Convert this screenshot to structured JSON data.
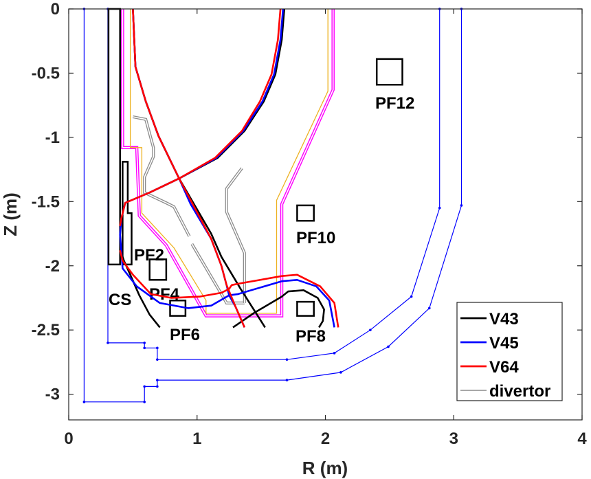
{
  "chart_data": {
    "type": "line",
    "title": "",
    "xlabel": "R (m)",
    "ylabel": "Z (m)",
    "xlim": [
      0,
      4
    ],
    "ylim": [
      -3.2,
      0
    ],
    "grid": false,
    "legend_placement": "bottom-right",
    "xticks": [
      0,
      1,
      2,
      3,
      4
    ],
    "xtick_labels": [
      "0",
      "1",
      "2",
      "3",
      "4"
    ],
    "yticks": [
      0,
      -0.5,
      -1,
      -1.5,
      -2,
      -2.5,
      -3
    ],
    "ytick_labels": [
      "0",
      "-0.5",
      "-1",
      "-1.5",
      "-2",
      "-2.5",
      "-3"
    ],
    "series": [
      {
        "name": "V43",
        "color": "#000000",
        "segments": [
          [
            [
              1.68,
              0
            ],
            [
              1.66,
              -0.24
            ],
            [
              1.61,
              -0.51
            ],
            [
              1.52,
              -0.72
            ],
            [
              1.37,
              -0.95
            ],
            [
              1.16,
              -1.16
            ],
            [
              0.86,
              -1.32
            ],
            [
              0.63,
              -1.43
            ]
          ],
          [
            [
              0.5,
              0
            ],
            [
              0.52,
              -0.45
            ],
            [
              0.6,
              -0.72
            ],
            [
              0.7,
              -0.99
            ],
            [
              0.86,
              -1.32
            ],
            [
              1.11,
              -1.75
            ],
            [
              1.19,
              -1.93
            ],
            [
              1.34,
              -2.18
            ],
            [
              1.53,
              -2.48
            ]
          ],
          [
            [
              0.41,
              -1.9
            ],
            [
              0.43,
              -1.96
            ],
            [
              0.48,
              -2.07
            ],
            [
              0.55,
              -2.23
            ],
            [
              0.63,
              -2.38
            ],
            [
              0.71,
              -2.48
            ]
          ],
          [
            [
              1.28,
              -2.48
            ],
            [
              1.44,
              -2.37
            ],
            [
              1.66,
              -2.24
            ],
            [
              1.71,
              -2.2
            ],
            [
              1.83,
              -2.19
            ],
            [
              1.94,
              -2.25
            ],
            [
              1.99,
              -2.34
            ],
            [
              1.98,
              -2.43
            ],
            [
              1.95,
              -2.48
            ]
          ]
        ]
      },
      {
        "name": "V45",
        "color": "#0000ff",
        "segments": [
          [
            [
              0.5,
              0
            ],
            [
              0.52,
              -0.45
            ],
            [
              0.6,
              -0.72
            ],
            [
              0.7,
              -0.99
            ],
            [
              0.86,
              -1.32
            ],
            [
              0.95,
              -1.52
            ],
            [
              1.11,
              -1.79
            ],
            [
              1.19,
              -2.0
            ],
            [
              1.23,
              -2.15
            ],
            [
              1.25,
              -2.23
            ],
            [
              1.3,
              -2.32
            ],
            [
              1.37,
              -2.48
            ]
          ],
          [
            [
              1.67,
              0
            ],
            [
              1.65,
              -0.24
            ],
            [
              1.6,
              -0.51
            ],
            [
              1.51,
              -0.72
            ],
            [
              1.36,
              -0.95
            ],
            [
              1.15,
              -1.16
            ],
            [
              0.86,
              -1.32
            ],
            [
              0.63,
              -1.43
            ],
            [
              0.44,
              -1.51
            ],
            [
              0.41,
              -1.63
            ],
            [
              0.4,
              -1.76
            ],
            [
              0.42,
              -2.02
            ],
            [
              0.53,
              -2.16
            ],
            [
              0.71,
              -2.29
            ],
            [
              0.93,
              -2.33
            ],
            [
              1.11,
              -2.31
            ],
            [
              1.25,
              -2.23
            ],
            [
              1.32,
              -2.22
            ],
            [
              1.66,
              -2.12
            ],
            [
              1.78,
              -2.11
            ],
            [
              1.93,
              -2.16
            ],
            [
              2.03,
              -2.27
            ],
            [
              2.07,
              -2.48
            ]
          ]
        ]
      },
      {
        "name": "V64",
        "color": "#ff0000",
        "segments": [
          [
            [
              0.5,
              0
            ],
            [
              0.52,
              -0.45
            ],
            [
              0.6,
              -0.72
            ],
            [
              0.7,
              -0.99
            ],
            [
              0.86,
              -1.32
            ],
            [
              1.11,
              -1.79
            ],
            [
              1.19,
              -2.0
            ],
            [
              1.23,
              -2.15
            ],
            [
              1.3,
              -2.32
            ],
            [
              1.37,
              -2.48
            ]
          ],
          [
            [
              1.65,
              0
            ],
            [
              1.63,
              -0.24
            ],
            [
              1.58,
              -0.51
            ],
            [
              1.49,
              -0.72
            ],
            [
              1.35,
              -0.95
            ],
            [
              1.14,
              -1.16
            ],
            [
              0.86,
              -1.32
            ],
            [
              0.63,
              -1.43
            ],
            [
              0.44,
              -1.51
            ],
            [
              0.41,
              -1.63
            ],
            [
              0.4,
              -1.69
            ]
          ],
          [
            [
              0.4,
              -1.88
            ],
            [
              0.42,
              -1.96
            ],
            [
              0.5,
              -2.07
            ],
            [
              0.64,
              -2.22
            ],
            [
              0.8,
              -2.25
            ],
            [
              1.02,
              -2.24
            ],
            [
              1.19,
              -2.21
            ],
            [
              1.25,
              -2.18
            ],
            [
              1.27,
              -2.15
            ],
            [
              1.32,
              -2.14
            ],
            [
              1.66,
              -2.08
            ],
            [
              1.78,
              -2.07
            ],
            [
              1.96,
              -2.16
            ],
            [
              2.07,
              -2.29
            ],
            [
              2.1,
              -2.48
            ]
          ]
        ]
      },
      {
        "name": "divertor",
        "color": "#8c8c8c",
        "segments": [
          [
            [
              0.5,
              -0.84
            ],
            [
              0.6,
              -0.86
            ],
            [
              0.66,
              -1.08
            ],
            [
              0.66,
              -1.15
            ],
            [
              0.59,
              -1.31
            ],
            [
              0.59,
              -1.43
            ],
            [
              0.76,
              -1.51
            ],
            [
              0.82,
              -1.54
            ],
            [
              0.94,
              -1.77
            ]
          ],
          [
            [
              0.96,
              -1.83
            ],
            [
              1.19,
              -2.22
            ],
            [
              1.23,
              -2.29
            ],
            [
              1.37,
              -2.29
            ]
          ],
          [
            [
              1.35,
              -1.24
            ],
            [
              1.23,
              -1.4
            ],
            [
              1.23,
              -1.58
            ],
            [
              1.37,
              -1.9
            ],
            [
              1.37,
              -2.29
            ]
          ]
        ]
      }
    ],
    "walls": [
      {
        "name": "first-wall",
        "color": "#ff00ff",
        "points": [
          [
            0.42,
            0
          ],
          [
            0.42,
            -1.08
          ],
          [
            0.53,
            -1.08
          ],
          [
            0.55,
            -1.61
          ],
          [
            0.76,
            -1.84
          ],
          [
            1.03,
            -2.32
          ],
          [
            1.07,
            -2.39
          ],
          [
            1.66,
            -2.39
          ],
          [
            1.66,
            -1.52
          ],
          [
            2.06,
            -0.63
          ],
          [
            2.06,
            0
          ]
        ]
      },
      {
        "name": "limiter-contour",
        "color": "#edb120",
        "points": [
          [
            0.48,
            0
          ],
          [
            0.48,
            -1.08
          ],
          [
            0.57,
            -1.08
          ],
          [
            0.57,
            -1.59
          ],
          [
            0.82,
            -1.86
          ],
          [
            1.07,
            -2.27
          ],
          [
            1.07,
            -2.37
          ],
          [
            1.62,
            -2.37
          ],
          [
            1.62,
            -1.49
          ],
          [
            2.02,
            -0.64
          ],
          [
            2.02,
            0
          ]
        ]
      },
      {
        "name": "vacuum-vessel-inner",
        "color": "#0000ff",
        "points": [
          [
            0.305,
            0
          ],
          [
            0.305,
            -2.6
          ],
          [
            0.59,
            -2.6
          ],
          [
            0.59,
            -2.64
          ],
          [
            0.69,
            -2.64
          ],
          [
            0.69,
            -2.73
          ],
          [
            1.7,
            -2.73
          ],
          [
            2.07,
            -2.68
          ],
          [
            2.35,
            -2.5
          ],
          [
            2.67,
            -2.24
          ],
          [
            2.89,
            -1.55
          ],
          [
            2.89,
            0
          ]
        ]
      },
      {
        "name": "vacuum-vessel-outer",
        "color": "#0000ff",
        "points": [
          [
            0.12,
            0
          ],
          [
            0.12,
            -3.06
          ],
          [
            0.59,
            -3.06
          ],
          [
            0.59,
            -2.94
          ],
          [
            0.69,
            -2.94
          ],
          [
            0.69,
            -2.89
          ],
          [
            1.7,
            -2.89
          ],
          [
            2.12,
            -2.83
          ],
          [
            2.49,
            -2.63
          ],
          [
            2.81,
            -2.33
          ],
          [
            3.06,
            -1.53
          ],
          [
            3.06,
            0
          ]
        ]
      }
    ],
    "coils": [
      {
        "name": "CS",
        "label": "CS",
        "points": [
          [
            0.31,
            0
          ],
          [
            0.4,
            0
          ],
          [
            0.4,
            -1.99
          ],
          [
            0.31,
            -1.99
          ]
        ]
      },
      {
        "name": "PF2",
        "label": "PF2",
        "points": [
          [
            0.42,
            -1.99
          ],
          [
            0.42,
            -1.19
          ],
          [
            0.46,
            -1.19
          ],
          [
            0.46,
            -1.59
          ],
          [
            0.49,
            -1.59
          ],
          [
            0.49,
            -1.99
          ]
        ]
      },
      {
        "name": "PF4",
        "label": "PF4",
        "points": [
          [
            0.63,
            -1.95
          ],
          [
            0.76,
            -1.95
          ],
          [
            0.76,
            -2.11
          ],
          [
            0.63,
            -2.11
          ]
        ]
      },
      {
        "name": "PF6",
        "label": "PF6",
        "points": [
          [
            0.79,
            -2.27
          ],
          [
            0.91,
            -2.27
          ],
          [
            0.91,
            -2.39
          ],
          [
            0.79,
            -2.39
          ]
        ]
      },
      {
        "name": "PF8",
        "label": "PF8",
        "points": [
          [
            1.78,
            -2.28
          ],
          [
            1.91,
            -2.28
          ],
          [
            1.91,
            -2.39
          ],
          [
            1.78,
            -2.39
          ]
        ]
      },
      {
        "name": "PF10",
        "label": "PF10",
        "points": [
          [
            1.78,
            -1.53
          ],
          [
            1.91,
            -1.53
          ],
          [
            1.91,
            -1.65
          ],
          [
            1.78,
            -1.65
          ]
        ]
      },
      {
        "name": "PF12",
        "label": "PF12",
        "points": [
          [
            2.4,
            -0.39
          ],
          [
            2.6,
            -0.39
          ],
          [
            2.6,
            -0.59
          ],
          [
            2.4,
            -0.59
          ]
        ]
      }
    ],
    "legend": [
      "V43",
      "V45",
      "V64",
      "divertor"
    ]
  }
}
